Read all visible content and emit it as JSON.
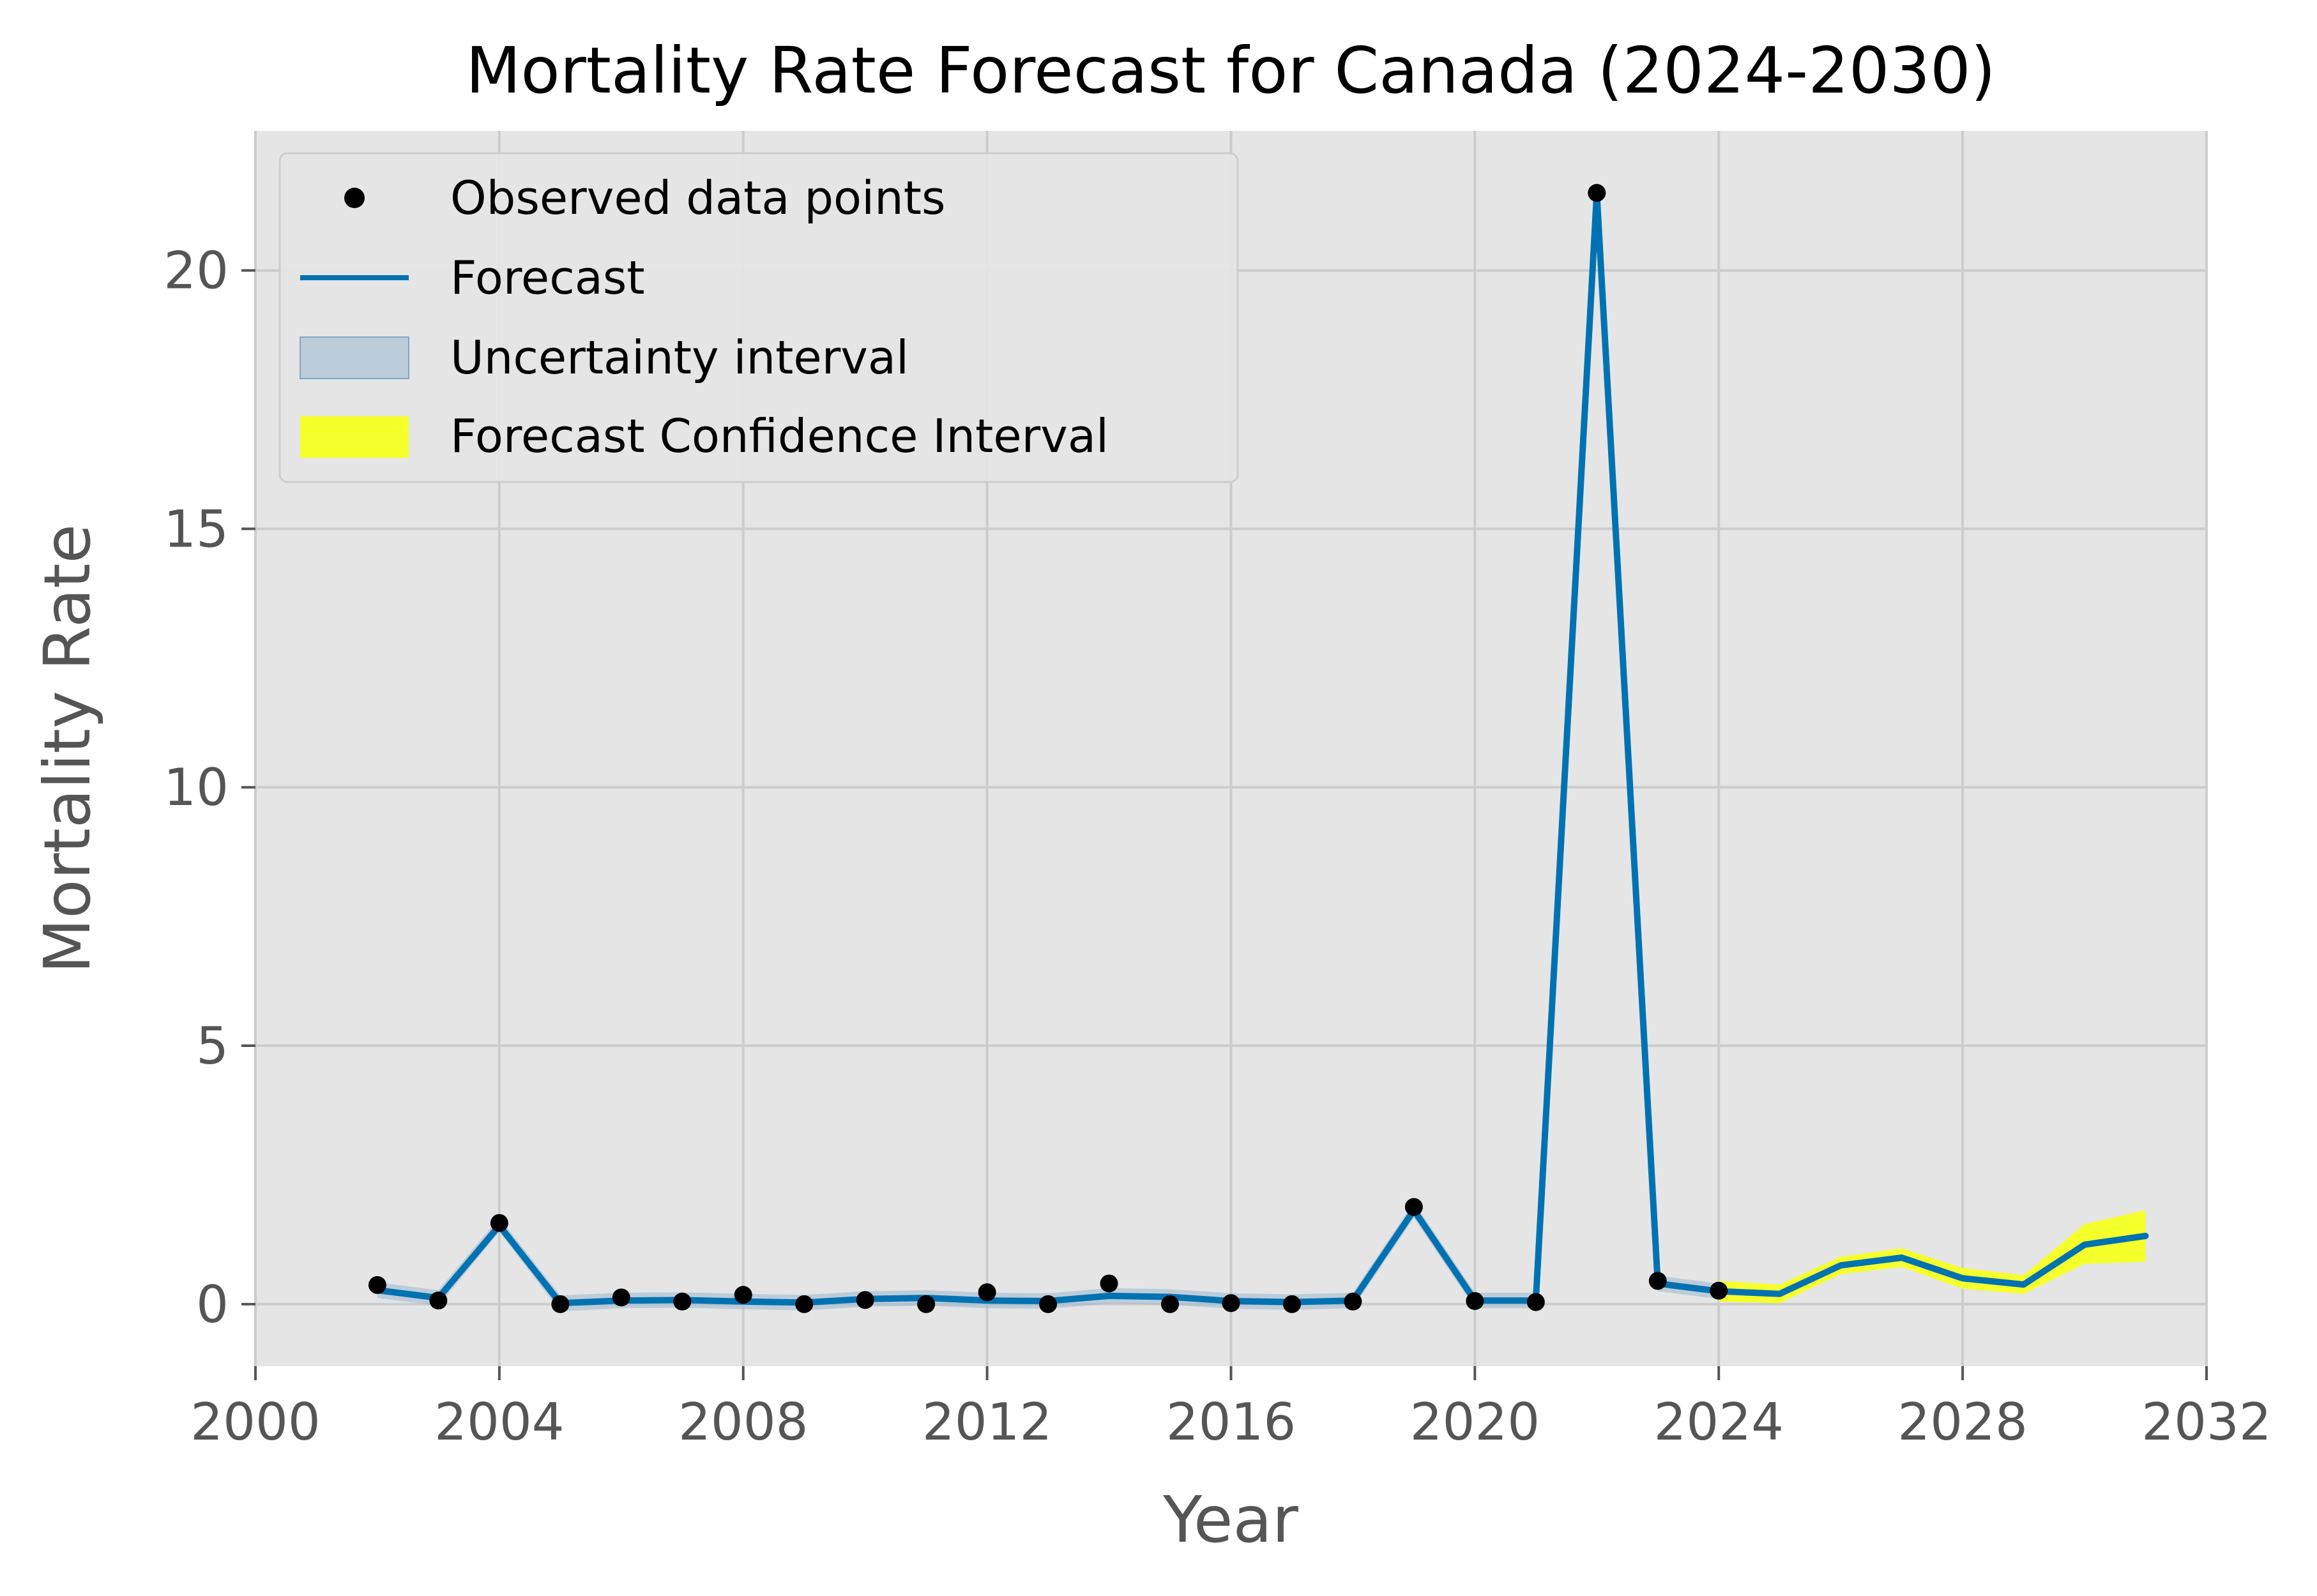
{
  "chart_data": {
    "type": "line",
    "title": "Mortality Rate Forecast for Canada (2024-2030)",
    "xlabel": "Year",
    "ylabel": "Mortality Rate",
    "xlim": [
      2000,
      2032
    ],
    "ylim": [
      -1.2,
      22.7
    ],
    "xticks": [
      2000,
      2004,
      2008,
      2012,
      2016,
      2020,
      2024,
      2028,
      2032
    ],
    "yticks": [
      0,
      5,
      10,
      15,
      20
    ],
    "grid": true,
    "legend_position": "top-left",
    "legend": [
      "Observed data points",
      "Forecast",
      "Uncertainty interval",
      "Forecast Confidence Interval"
    ],
    "colors": {
      "plot_background": "#e5e5e5",
      "grid": "#cccccc",
      "observed": "#000000",
      "forecast": "#0072b2",
      "uncertainty": "#9ab8cf",
      "forecast_ci": "#f5ff2a"
    },
    "observed": {
      "name": "Observed data points",
      "x": [
        2002,
        2003,
        2004,
        2005,
        2006,
        2007,
        2008,
        2009,
        2010,
        2011,
        2012,
        2013,
        2014,
        2015,
        2016,
        2017,
        2018,
        2019,
        2020,
        2021,
        2022,
        2023,
        2024
      ],
      "y": [
        0.37,
        0.07,
        1.57,
        0.0,
        0.13,
        0.05,
        0.18,
        0.0,
        0.08,
        0.0,
        0.23,
        0.0,
        0.4,
        0.0,
        0.02,
        0.0,
        0.05,
        1.88,
        0.06,
        0.04,
        21.5,
        0.45,
        0.26
      ]
    },
    "forecast": {
      "name": "Forecast",
      "x": [
        2002,
        2003,
        2004,
        2005,
        2006,
        2007,
        2008,
        2009,
        2010,
        2011,
        2012,
        2013,
        2014,
        2015,
        2016,
        2017,
        2018,
        2019,
        2020,
        2021,
        2022,
        2023,
        2024,
        2025,
        2026,
        2027,
        2028,
        2029,
        2030,
        2031
      ],
      "y": [
        0.27,
        0.12,
        1.52,
        0.02,
        0.07,
        0.08,
        0.05,
        0.03,
        0.1,
        0.12,
        0.07,
        0.06,
        0.16,
        0.14,
        0.06,
        0.04,
        0.07,
        1.82,
        0.07,
        0.07,
        21.5,
        0.4,
        0.25,
        0.2,
        0.75,
        0.9,
        0.5,
        0.38,
        1.15,
        1.32
      ]
    },
    "uncertainty_interval": {
      "name": "Uncertainty interval",
      "x": [
        2002,
        2003,
        2004,
        2005,
        2006,
        2007,
        2008,
        2009,
        2010,
        2011,
        2012,
        2013,
        2014,
        2015,
        2016,
        2017,
        2018,
        2019,
        2020,
        2021,
        2022,
        2023,
        2024
      ],
      "lower": [
        0.12,
        -0.03,
        1.4,
        -0.14,
        -0.08,
        -0.07,
        -0.1,
        -0.12,
        -0.05,
        -0.03,
        -0.08,
        -0.09,
        0.01,
        -0.01,
        -0.09,
        -0.11,
        -0.08,
        1.67,
        -0.08,
        -0.08,
        21.35,
        0.25,
        0.1
      ],
      "upper": [
        0.42,
        0.27,
        1.67,
        0.17,
        0.22,
        0.23,
        0.2,
        0.18,
        0.25,
        0.27,
        0.22,
        0.21,
        0.31,
        0.29,
        0.21,
        0.19,
        0.22,
        1.97,
        0.22,
        0.22,
        21.65,
        0.55,
        0.4
      ]
    },
    "forecast_confidence_interval": {
      "name": "Forecast Confidence Interval",
      "x": [
        2024,
        2025,
        2026,
        2027,
        2028,
        2029,
        2030,
        2031
      ],
      "lower": [
        0.05,
        0.02,
        0.58,
        0.72,
        0.3,
        0.2,
        0.78,
        0.82
      ],
      "upper": [
        0.45,
        0.38,
        0.92,
        1.08,
        0.7,
        0.56,
        1.55,
        1.82
      ]
    }
  }
}
